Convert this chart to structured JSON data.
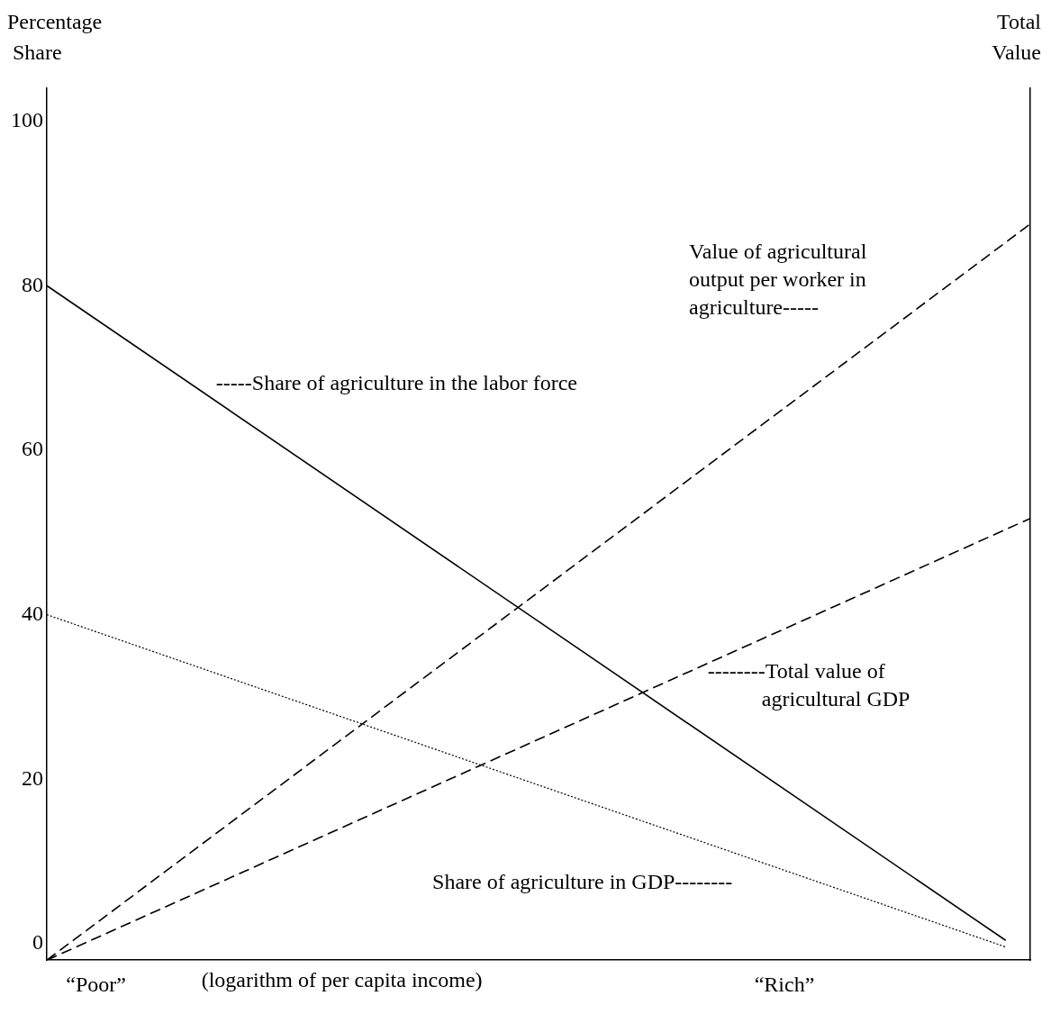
{
  "chart_data": {
    "type": "line",
    "ylabel": "Percentage Share",
    "y2label": "Total Value",
    "xlabel": "(logarithm of per capita income)",
    "categories": [
      null,
      null,
      "“Poor”",
      null,
      null,
      null,
      null,
      null,
      null,
      null,
      null,
      null,
      null,
      null,
      null,
      null,
      null,
      null,
      null,
      null,
      null,
      null,
      null,
      null,
      null,
      null,
      null,
      null,
      null,
      null,
      "“Rich”",
      null,
      null,
      null,
      null,
      null,
      null,
      null,
      null,
      null,
      null
    ],
    "ylim": [
      -2,
      104
    ],
    "yticks": [
      0,
      20,
      40,
      60,
      80,
      100
    ],
    "grid": false,
    "legend": false,
    "marker": "none",
    "series": [
      {
        "name": "-----Share of agriculture in the labor force",
        "color": "#000000",
        "line_style": "solid",
        "values": [
          80,
          null,
          null,
          null,
          null,
          null,
          null,
          null,
          null,
          null,
          null,
          null,
          null,
          null,
          null,
          null,
          null,
          null,
          null,
          null,
          null,
          null,
          null,
          null,
          null,
          null,
          null,
          null,
          null,
          null,
          null,
          null,
          null,
          null,
          null,
          null,
          null,
          null,
          null,
          0.4,
          null
        ]
      },
      {
        "name": "Share of agriculture in GDP--------",
        "color": "#000000",
        "line_style": "dotted",
        "values": [
          40,
          null,
          null,
          null,
          null,
          null,
          null,
          null,
          null,
          null,
          null,
          null,
          null,
          null,
          null,
          null,
          null,
          null,
          null,
          null,
          null,
          null,
          null,
          null,
          null,
          null,
          null,
          null,
          null,
          null,
          null,
          null,
          null,
          null,
          null,
          null,
          null,
          null,
          null,
          -0.4,
          null
        ]
      },
      {
        "name": "Value of agricultural output per worker in agriculture-----",
        "color": "#000000",
        "line_style": "dashed",
        "values": [
          -2,
          null,
          null,
          null,
          null,
          null,
          null,
          null,
          null,
          null,
          null,
          null,
          null,
          null,
          null,
          null,
          null,
          null,
          null,
          null,
          null,
          null,
          null,
          null,
          null,
          null,
          null,
          null,
          null,
          null,
          null,
          null,
          null,
          null,
          null,
          null,
          null,
          null,
          null,
          null,
          87.5
        ]
      },
      {
        "name": "--------Total value of agricultural GDP",
        "color": "#000000",
        "line_style": "dashed",
        "values": [
          -2,
          null,
          null,
          null,
          null,
          null,
          null,
          null,
          null,
          null,
          null,
          null,
          null,
          null,
          null,
          null,
          null,
          null,
          null,
          null,
          null,
          null,
          null,
          null,
          null,
          null,
          null,
          null,
          null,
          null,
          null,
          null,
          null,
          null,
          null,
          null,
          null,
          null,
          null,
          null,
          51.7
        ]
      }
    ]
  }
}
